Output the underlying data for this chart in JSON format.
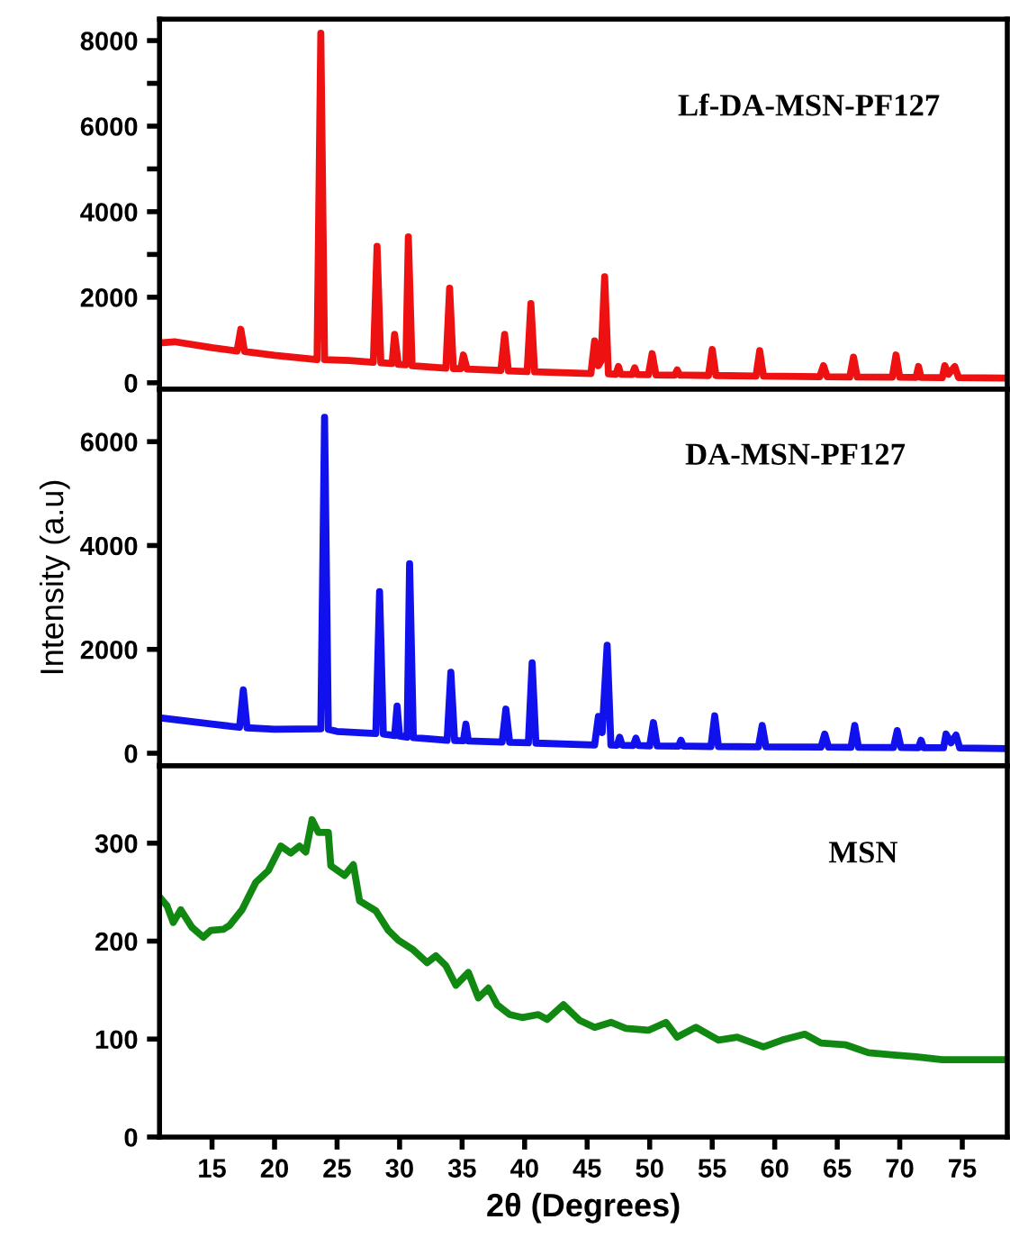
{
  "chart_data": [
    {
      "type": "line",
      "annotations": [
        "Lf-DA-MSN-PF127"
      ],
      "xlim": [
        10.8,
        78.6
      ],
      "ylim": [
        -150,
        8500
      ],
      "yticks": [
        0,
        2000,
        {
          "value": 3000,
          "label": null
        },
        4000,
        {
          "value": 5000,
          "label": null
        },
        6000,
        {
          "value": 7000,
          "label": null
        },
        8000
      ],
      "tick_labels": "y",
      "grid": false,
      "legend": false,
      "series": [
        {
          "color": "#ee1111",
          "x": [
            10.8,
            12,
            15,
            17.0,
            17.3,
            17.6,
            20,
            23.4,
            23.7,
            24.0,
            26,
            27.9,
            28.2,
            28.5,
            29.4,
            29.6,
            29.9,
            30.5,
            30.7,
            31.0,
            33.7,
            34.0,
            34.3,
            34.9,
            35.1,
            35.4,
            38.1,
            38.4,
            38.7,
            40.2,
            40.5,
            40.8,
            45.3,
            45.6,
            45.9,
            46.1,
            46.4,
            46.7,
            47.3,
            47.5,
            47.7,
            48.6,
            48.8,
            49.0,
            49.9,
            50.2,
            50.5,
            52.0,
            52.2,
            52.4,
            54.7,
            55.0,
            55.3,
            58.5,
            58.8,
            59.1,
            63.6,
            63.9,
            64.2,
            66.0,
            66.3,
            66.6,
            69.4,
            69.7,
            70.0,
            71.3,
            71.5,
            71.7,
            73.4,
            73.6,
            73.9,
            74.4,
            74.7,
            78.6
          ],
          "values": [
            930,
            960,
            820,
            740,
            1250,
            730,
            640,
            540,
            8170,
            540,
            520,
            480,
            3190,
            470,
            450,
            1130,
            430,
            420,
            3410,
            400,
            340,
            2210,
            330,
            330,
            650,
            320,
            290,
            1130,
            280,
            260,
            1850,
            255,
            215,
            980,
            400,
            500,
            2480,
            210,
            200,
            380,
            200,
            195,
            350,
            195,
            190,
            680,
            185,
            180,
            300,
            180,
            170,
            780,
            170,
            155,
            750,
            155,
            140,
            400,
            140,
            135,
            600,
            135,
            130,
            650,
            130,
            125,
            380,
            125,
            120,
            400,
            200,
            380,
            120,
            110
          ]
        }
      ]
    },
    {
      "type": "line",
      "annotations": [
        "DA-MSN-PF127"
      ],
      "ylabel": "Intensity (a.u)",
      "xlim": [
        10.8,
        78.6
      ],
      "ylim": [
        -244,
        7010
      ],
      "yticks": [
        0,
        2000,
        4000,
        6000
      ],
      "tick_labels": "y",
      "grid": false,
      "legend": false,
      "series": [
        {
          "color": "#1111ee",
          "x": [
            10.8,
            12,
            15,
            17.2,
            17.5,
            17.8,
            20,
            23.7,
            24.0,
            24.3,
            25,
            28.1,
            28.4,
            28.7,
            29.6,
            29.8,
            30.0,
            30.6,
            30.8,
            31.1,
            33.8,
            34.1,
            34.4,
            35.1,
            35.3,
            35.5,
            38.2,
            38.5,
            38.8,
            40.3,
            40.6,
            40.9,
            45.6,
            45.9,
            46.2,
            46.6,
            46.9,
            47.4,
            47.6,
            47.8,
            48.7,
            48.9,
            49.1,
            50.0,
            50.3,
            50.6,
            52.3,
            52.5,
            52.7,
            54.9,
            55.2,
            55.5,
            58.7,
            59.0,
            59.3,
            63.7,
            64.0,
            64.3,
            66.1,
            66.4,
            66.7,
            69.5,
            69.8,
            70.1,
            71.5,
            71.7,
            71.9,
            73.5,
            73.7,
            74.1,
            74.5,
            74.8,
            78.6
          ],
          "values": [
            685,
            650,
            560,
            500,
            1220,
            490,
            460,
            470,
            6470,
            460,
            420,
            380,
            3110,
            370,
            340,
            910,
            330,
            310,
            3650,
            300,
            250,
            1560,
            245,
            240,
            560,
            235,
            215,
            850,
            210,
            200,
            1740,
            195,
            160,
            710,
            400,
            2080,
            160,
            155,
            310,
            155,
            150,
            290,
            150,
            140,
            590,
            140,
            135,
            250,
            135,
            130,
            720,
            130,
            125,
            535,
            125,
            118,
            370,
            118,
            115,
            535,
            115,
            110,
            435,
            110,
            108,
            250,
            108,
            105,
            370,
            200,
            350,
            100,
            90
          ]
        }
      ]
    },
    {
      "type": "line",
      "annotations": [
        "MSN"
      ],
      "xlabel": "2θ (Degrees)",
      "xlim": [
        10.8,
        78.6
      ],
      "xticks": [
        15,
        20,
        25,
        30,
        35,
        40,
        45,
        50,
        55,
        60,
        65,
        70,
        75
      ],
      "ylim": [
        0,
        379
      ],
      "yticks": [
        0,
        100,
        200,
        300
      ],
      "grid": false,
      "legend": false,
      "series": [
        {
          "color": "#118811",
          "x": [
            10.8,
            11.4,
            11.9,
            12.5,
            13.4,
            14.3,
            14.9,
            15.9,
            16.4,
            17.4,
            18.5,
            19.5,
            20.5,
            21.3,
            22.0,
            22.5,
            23.0,
            23.5,
            24.3,
            24.5,
            25.6,
            26.3,
            26.8,
            28.1,
            29.1,
            29.9,
            31.1,
            32.2,
            32.9,
            33.7,
            34.5,
            35.5,
            36.3,
            37.1,
            37.8,
            38.8,
            39.8,
            41.1,
            41.8,
            43.1,
            44.4,
            45.6,
            46.9,
            48.1,
            49.9,
            51.3,
            52.2,
            53.7,
            55.5,
            57.0,
            59.1,
            60.6,
            62.4,
            63.7,
            65.7,
            67.5,
            69.3,
            71.3,
            73.4,
            75.4,
            78.6
          ],
          "values": [
            245,
            236,
            219,
            232,
            214,
            204,
            211,
            212,
            216,
            232,
            260,
            272,
            297,
            290,
            297,
            291,
            324,
            311,
            311,
            277,
            267,
            278,
            241,
            231,
            211,
            201,
            191,
            178,
            185,
            175,
            155,
            168,
            142,
            152,
            135,
            125,
            122,
            125,
            120,
            135,
            119,
            112,
            117,
            111,
            109,
            117,
            102,
            112,
            99,
            102,
            92,
            99,
            105,
            96,
            94,
            86,
            84,
            82,
            79,
            79,
            79
          ]
        }
      ]
    }
  ]
}
